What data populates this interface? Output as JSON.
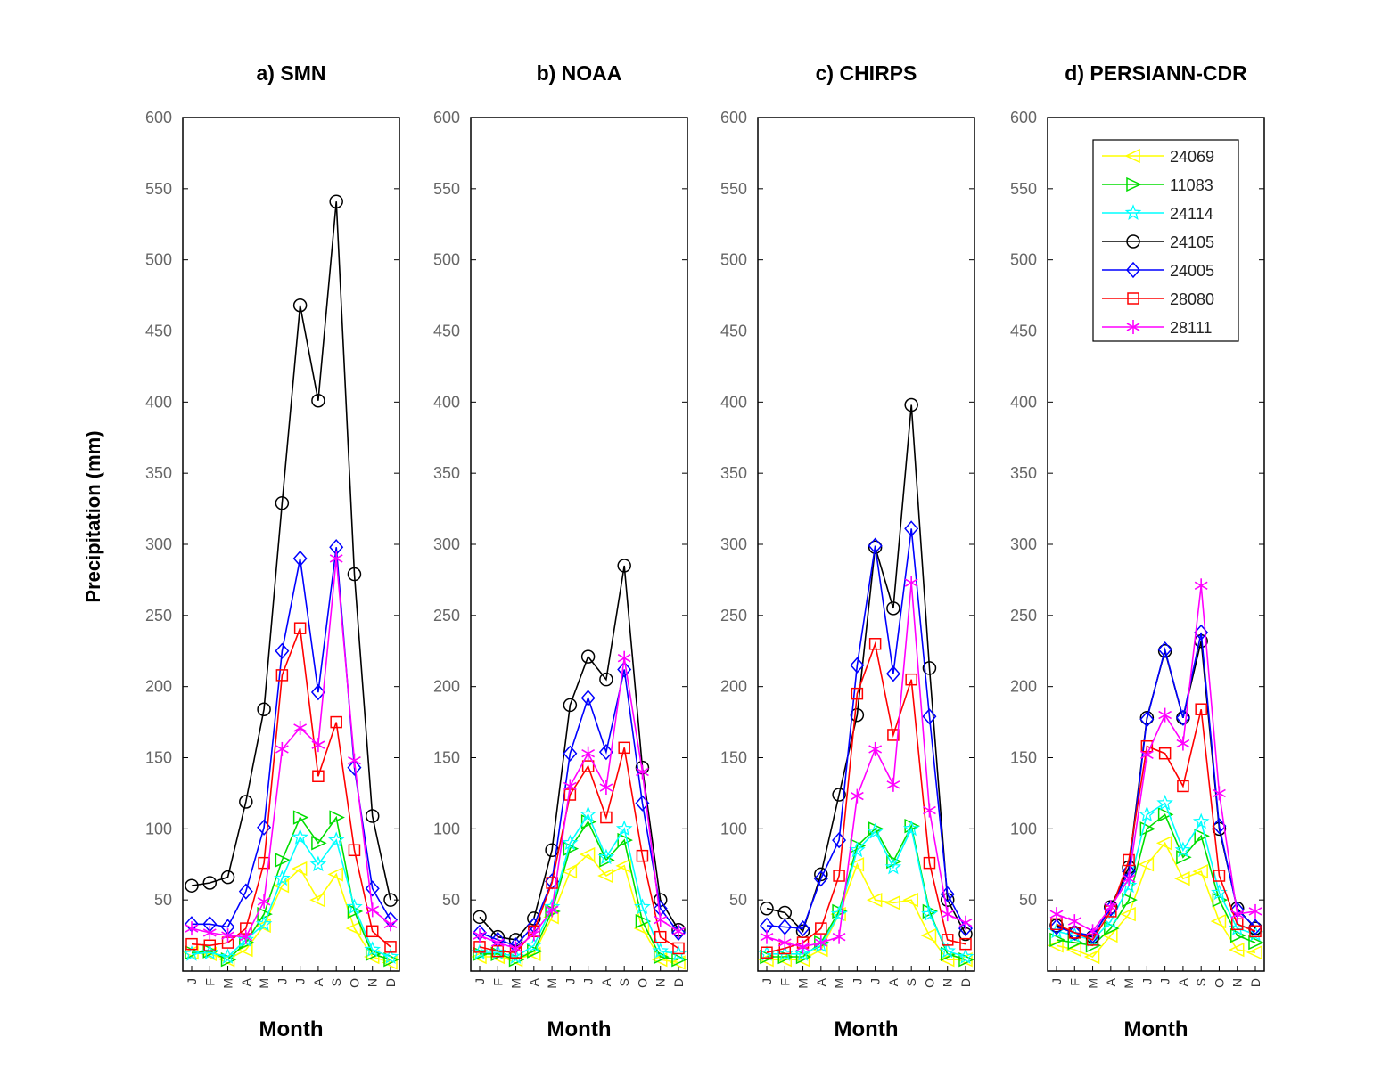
{
  "chart_data": {
    "type": "line",
    "ylabel": "Precipitation (mm)",
    "xlabel": "Month",
    "ylim": [
      0,
      600
    ],
    "yticks": [
      50,
      100,
      150,
      200,
      250,
      300,
      350,
      400,
      450,
      500,
      550,
      600
    ],
    "categories": [
      "J",
      "F",
      "M",
      "A",
      "M",
      "J",
      "J",
      "A",
      "S",
      "O",
      "N",
      "D"
    ],
    "legend": {
      "location": "top-right of panel d",
      "entries": [
        "24069",
        "11083",
        "24114",
        "24105",
        "24005",
        "28080",
        "28111"
      ]
    },
    "series_styles": [
      {
        "name": "24069",
        "color": "#ffff00",
        "marker": "triangle-left"
      },
      {
        "name": "11083",
        "color": "#00dd00",
        "marker": "triangle-right"
      },
      {
        "name": "24114",
        "color": "#00ffff",
        "marker": "star"
      },
      {
        "name": "24105",
        "color": "#000000",
        "marker": "circle"
      },
      {
        "name": "24005",
        "color": "#0000ff",
        "marker": "diamond"
      },
      {
        "name": "28080",
        "color": "#ff0000",
        "marker": "square"
      },
      {
        "name": "28111",
        "color": "#ff00ff",
        "marker": "asterisk"
      }
    ],
    "panels": [
      {
        "title": "a) SMN",
        "series": [
          {
            "name": "24069",
            "values": [
              13,
              12,
              8,
              15,
              32,
              60,
              72,
              50,
              68,
              30,
              10,
              6
            ]
          },
          {
            "name": "11083",
            "values": [
              13,
              14,
              8,
              20,
              40,
              78,
              108,
              90,
              108,
              42,
              12,
              8
            ]
          },
          {
            "name": "24114",
            "values": [
              12,
              13,
              10,
              22,
              33,
              65,
              94,
              75,
              92,
              45,
              15,
              10
            ]
          },
          {
            "name": "24105",
            "values": [
              60,
              62,
              66,
              119,
              184,
              329,
              468,
              401,
              541,
              279,
              109,
              50
            ]
          },
          {
            "name": "24005",
            "values": [
              33,
              33,
              31,
              56,
              101,
              225,
              290,
              196,
              298,
              143,
              58,
              36
            ]
          },
          {
            "name": "28080",
            "values": [
              19,
              18,
              20,
              30,
              76,
              208,
              241,
              137,
              175,
              85,
              28,
              17
            ]
          },
          {
            "name": "28111",
            "values": [
              30,
              27,
              25,
              24,
              49,
              156,
              171,
              159,
              290,
              148,
              43,
              33
            ]
          }
        ]
      },
      {
        "title": "b) NOAA",
        "series": [
          {
            "name": "24069",
            "values": [
              10,
              10,
              8,
              12,
              38,
              70,
              82,
              67,
              74,
              30,
              8,
              6
            ]
          },
          {
            "name": "11083",
            "values": [
              12,
              12,
              8,
              14,
              42,
              86,
              105,
              78,
              92,
              35,
              10,
              8
            ]
          },
          {
            "name": "24114",
            "values": [
              13,
              13,
              10,
              18,
              45,
              90,
              110,
              80,
              100,
              45,
              14,
              12
            ]
          },
          {
            "name": "24105",
            "values": [
              38,
              24,
              22,
              37,
              85,
              187,
              221,
              205,
              285,
              143,
              50,
              29
            ]
          },
          {
            "name": "24005",
            "values": [
              27,
              22,
              18,
              32,
              63,
              153,
              192,
              154,
              212,
              118,
              44,
              27
            ]
          },
          {
            "name": "28080",
            "values": [
              17,
              14,
              13,
              28,
              62,
              124,
              144,
              108,
              157,
              81,
              24,
              16
            ]
          },
          {
            "name": "28111",
            "values": [
              25,
              20,
              16,
              26,
              43,
              130,
              153,
              129,
              220,
              140,
              36,
              28
            ]
          }
        ]
      },
      {
        "title": "c) CHIRPS",
        "series": [
          {
            "name": "24069",
            "values": [
              8,
              8,
              8,
              15,
              40,
              75,
              50,
              48,
              50,
              25,
              8,
              8
            ]
          },
          {
            "name": "11083",
            "values": [
              10,
              10,
              10,
              20,
              42,
              88,
              100,
              77,
              102,
              42,
              12,
              8
            ]
          },
          {
            "name": "24114",
            "values": [
              12,
              12,
              12,
              18,
              40,
              85,
              98,
              73,
              100,
              40,
              14,
              10
            ]
          },
          {
            "name": "24105",
            "values": [
              44,
              41,
              28,
              68,
              124,
              180,
              298,
              255,
              398,
              213,
              50,
              26
            ]
          },
          {
            "name": "24005",
            "values": [
              32,
              31,
              30,
              65,
              92,
              215,
              299,
              209,
              311,
              179,
              54,
              30
            ]
          },
          {
            "name": "28080",
            "values": [
              13,
              16,
              20,
              30,
              67,
              195,
              230,
              166,
              205,
              76,
              22,
              19
            ]
          },
          {
            "name": "28111",
            "values": [
              24,
              20,
              17,
              20,
              24,
              123,
              156,
              131,
              273,
              113,
              40,
              34
            ]
          }
        ]
      },
      {
        "title": "d) PERSIANN-CDR",
        "series": [
          {
            "name": "24069",
            "values": [
              18,
              15,
              10,
              25,
              40,
              75,
              90,
              65,
              70,
              35,
              15,
              13
            ]
          },
          {
            "name": "11083",
            "values": [
              22,
              20,
              18,
              30,
              50,
              100,
              110,
              80,
              95,
              50,
              25,
              20
            ]
          },
          {
            "name": "24114",
            "values": [
              28,
              25,
              22,
              35,
              60,
              110,
              118,
              85,
              105,
              55,
              30,
              26
            ]
          },
          {
            "name": "24105",
            "values": [
              32,
              27,
              24,
              45,
              73,
              178,
              225,
              178,
              232,
              100,
              44,
              30
            ]
          },
          {
            "name": "24005",
            "values": [
              31,
              27,
              25,
              44,
              70,
              177,
              226,
              178,
              238,
              102,
              43,
              31
            ]
          },
          {
            "name": "28080",
            "values": [
              33,
              27,
              22,
              42,
              78,
              158,
              153,
              130,
              184,
              67,
              33,
              28
            ]
          },
          {
            "name": "28111",
            "values": [
              40,
              35,
              28,
              45,
              65,
              152,
              180,
              160,
              271,
              125,
              40,
              42
            ]
          }
        ]
      }
    ]
  }
}
